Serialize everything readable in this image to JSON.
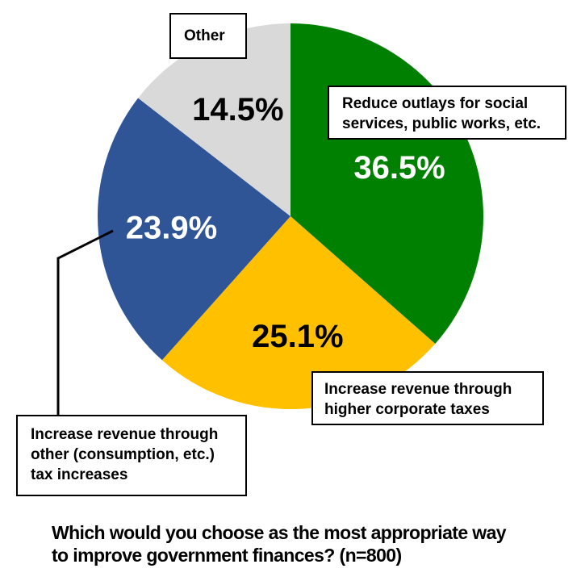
{
  "chart_data": {
    "type": "pie",
    "title": "Which would you choose as the most appropriate way to improve government finances? (n=800)",
    "slices": [
      {
        "label": "Reduce outlays for social services, public works, etc.",
        "value": 36.5,
        "display": "36.5%",
        "color": "#008000",
        "text_color": "#ffffff"
      },
      {
        "label": "Increase revenue through higher corporate taxes",
        "value": 25.1,
        "display": "25.1%",
        "color": "#ffc000",
        "text_color": "#000000"
      },
      {
        "label": "Increase revenue through other (consumption, etc.) tax increases",
        "value": 23.9,
        "display": "23.9%",
        "color": "#2f5597",
        "text_color": "#ffffff"
      },
      {
        "label": "Other",
        "value": 14.5,
        "display": "14.5%",
        "color": "#d9d9d9",
        "text_color": "#000000"
      }
    ],
    "start_angle_deg": 0,
    "direction": "clockwise",
    "legend": "callout boxes"
  },
  "labels": {
    "other": "Other",
    "reduce_line1": "Reduce outlays for social",
    "reduce_line2": "services, public works, etc.",
    "corporate_line1": "Increase revenue through",
    "corporate_line2": "higher corporate taxes",
    "other_tax_line1": "Increase revenue through",
    "other_tax_line2": "other (consumption, etc.)",
    "other_tax_line3": "tax increases"
  },
  "question": {
    "line1": "Which would you choose as the most appropriate way",
    "line2": "to improve government finances? (n=800)"
  }
}
